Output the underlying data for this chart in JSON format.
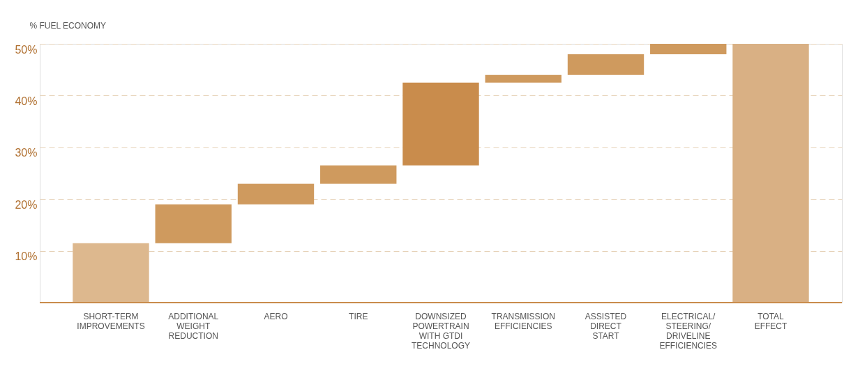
{
  "chart_data": {
    "type": "bar",
    "ylabel": "% FUEL ECONOMY",
    "categories": [
      "SHORT-TERM\nIMPROVEMENTS",
      "ADDITIONAL\nWEIGHT\nREDUCTION",
      "AERO",
      "TIRE",
      "DOWNSIZED\nPOWERTRAIN\nWITH GTDI\nTECHNOLOGY",
      "TRANSMISSION\nEFFICIENCIES",
      "ASSISTED\nDIRECT\nSTART",
      "ELECTRICAL/\nSTEERING/\nDRIVELINE\nEFFICIENCIES",
      "TOTAL\nEFFECT"
    ],
    "base": [
      0,
      11.5,
      19,
      23,
      26.5,
      42.5,
      44,
      48,
      0
    ],
    "values": [
      11.5,
      7.5,
      4,
      3.5,
      16,
      1.5,
      4,
      2,
      50
    ],
    "colors": [
      "#ddb88e",
      "#cf9a5e",
      "#cf9a5e",
      "#cf9a5e",
      "#c98c4c",
      "#cf9a5e",
      "#cf9a5e",
      "#cf9a5e",
      "#d9b084"
    ],
    "ylim": [
      0,
      50
    ],
    "yticks": [
      {
        "value": 10,
        "label": "10%"
      },
      {
        "value": 20,
        "label": "20%"
      },
      {
        "value": 30,
        "label": "30%"
      },
      {
        "value": 40,
        "label": "40%"
      },
      {
        "value": 50,
        "label": "50%"
      }
    ],
    "grid": "y"
  }
}
